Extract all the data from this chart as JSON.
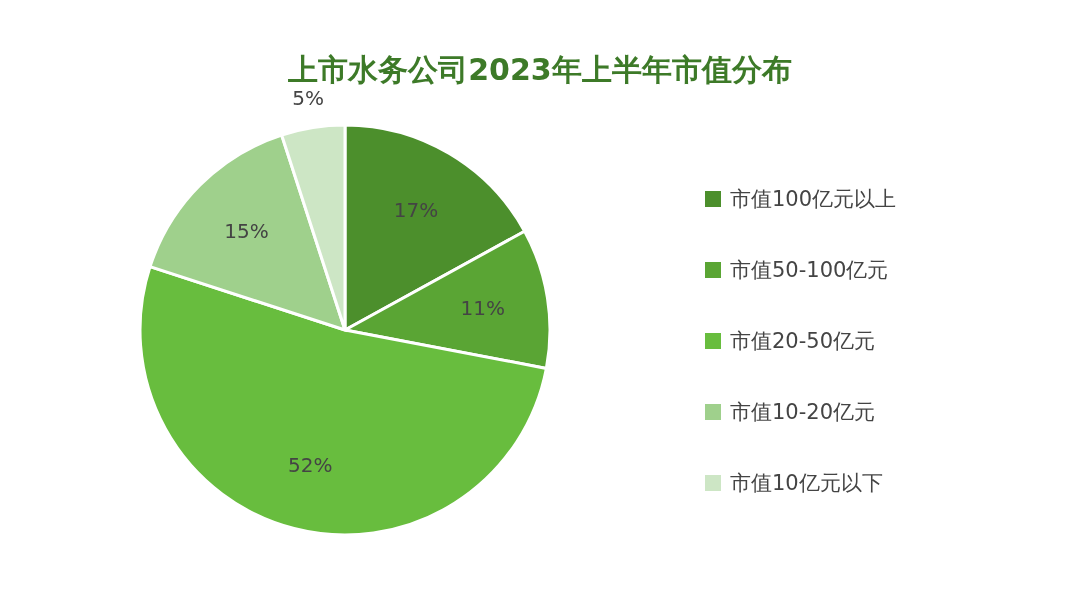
{
  "chart_data": {
    "type": "pie",
    "title": "上市水务公司2023年上半年市值分布",
    "categories": [
      "市值100亿元以上",
      "市值50-100亿元",
      "市值20-50亿元",
      "市值10-20亿元",
      "市值10亿元以下"
    ],
    "values": [
      17,
      11,
      52,
      15,
      5
    ],
    "colors": [
      "#4c8f2c",
      "#5aa534",
      "#68bd3e",
      "#9fd08c",
      "#cde6c5"
    ],
    "value_labels": [
      "17%",
      "11%",
      "52%",
      "15%",
      "5%"
    ],
    "legend": "right"
  }
}
